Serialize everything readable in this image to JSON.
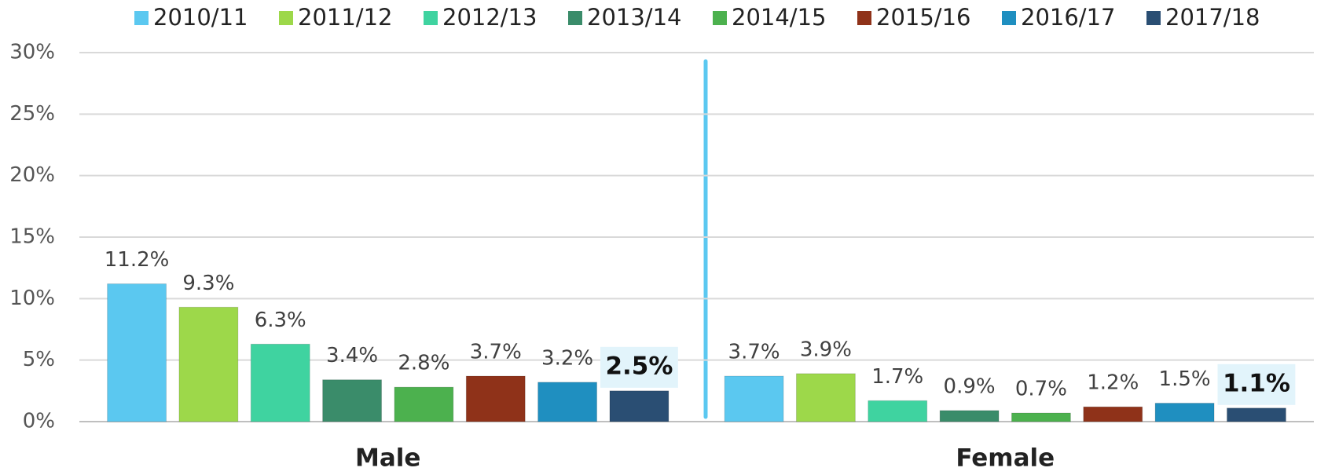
{
  "chart_data": {
    "type": "bar",
    "categories": [
      "Male",
      "Female"
    ],
    "series": [
      {
        "name": "2010/11",
        "color": "#5bc8f0",
        "values": [
          11.2,
          3.7
        ],
        "value_labels": [
          "11.2%",
          "3.7%"
        ]
      },
      {
        "name": "2011/12",
        "color": "#9dd84a",
        "values": [
          9.3,
          3.9
        ],
        "value_labels": [
          "9.3%",
          "3.9%"
        ]
      },
      {
        "name": "2012/13",
        "color": "#3fd3a0",
        "values": [
          6.3,
          1.7
        ],
        "value_labels": [
          "6.3%",
          "1.7%"
        ]
      },
      {
        "name": "2013/14",
        "color": "#3a8c6a",
        "values": [
          3.4,
          0.9
        ],
        "value_labels": [
          "3.4%",
          "0.9%"
        ]
      },
      {
        "name": "2014/15",
        "color": "#4cb14e",
        "values": [
          2.8,
          0.7
        ],
        "value_labels": [
          "2.8%",
          "0.7%"
        ]
      },
      {
        "name": "2015/16",
        "color": "#8f3219",
        "values": [
          3.7,
          1.2
        ],
        "value_labels": [
          "3.7%",
          "1.2%"
        ]
      },
      {
        "name": "2016/17",
        "color": "#1f8fc0",
        "values": [
          3.2,
          1.5
        ],
        "value_labels": [
          "3.2%",
          "1.5%"
        ]
      },
      {
        "name": "2017/18",
        "color": "#2a4e73",
        "values": [
          2.5,
          1.1
        ],
        "value_labels": [
          "2.5%",
          "1.1%"
        ]
      }
    ],
    "ylim": [
      0,
      30
    ],
    "yticks": [
      {
        "value": 0,
        "label": "0%"
      },
      {
        "value": 5,
        "label": "5%"
      },
      {
        "value": 10,
        "label": "10%"
      },
      {
        "value": 15,
        "label": "15%"
      },
      {
        "value": 20,
        "label": "20%"
      },
      {
        "value": 25,
        "label": "25%"
      },
      {
        "value": 30,
        "label": "30%"
      }
    ],
    "grid": true,
    "legend": "top"
  }
}
